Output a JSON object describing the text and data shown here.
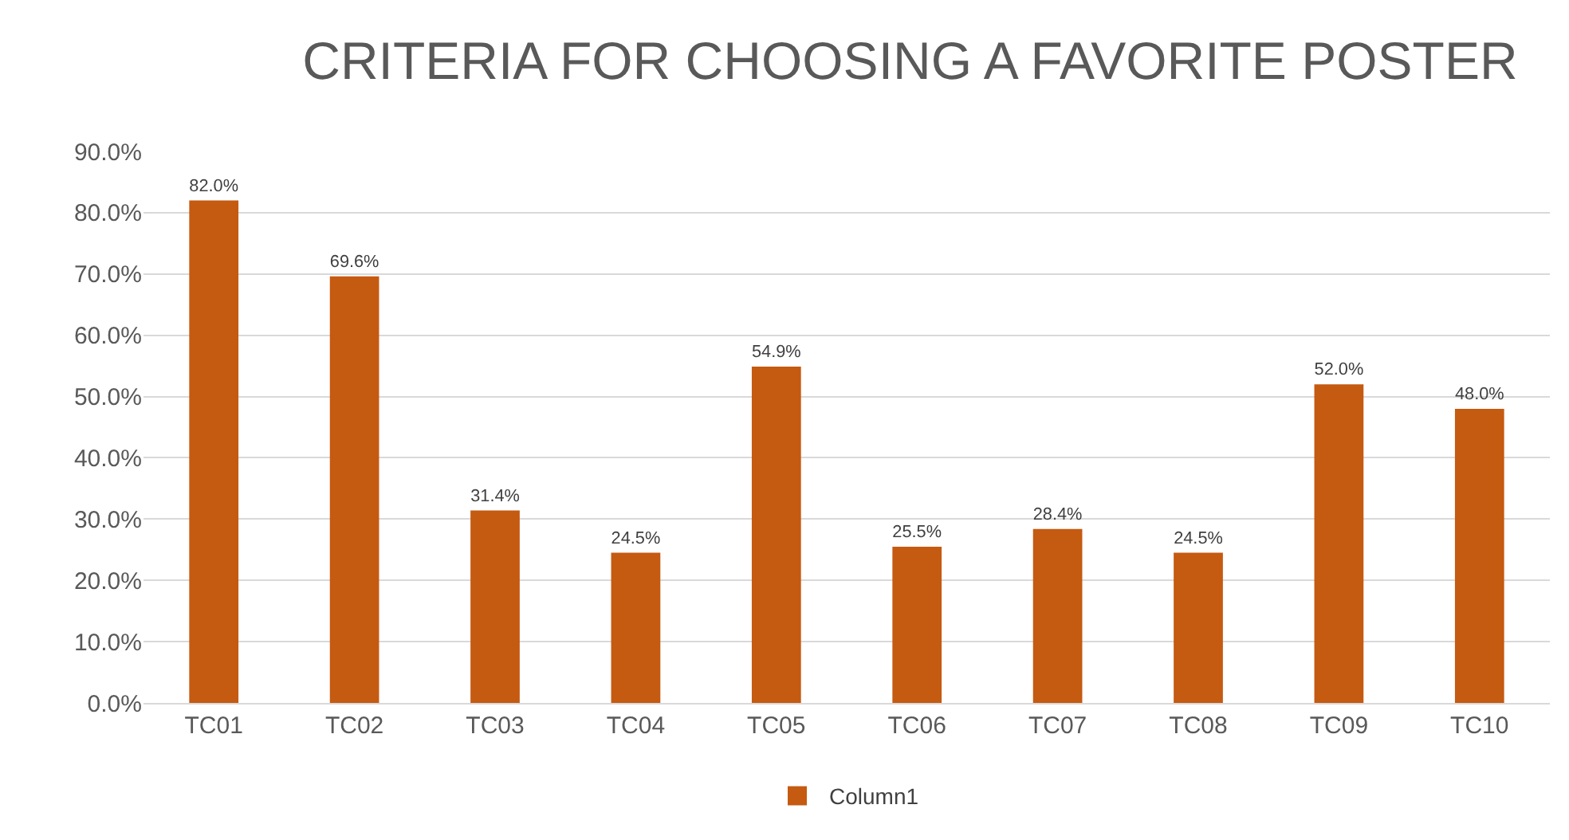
{
  "chart_data": {
    "type": "bar",
    "title": "CRITERIA FOR CHOOSING A FAVORITE POSTER",
    "categories": [
      "TC01",
      "TC02",
      "TC03",
      "TC04",
      "TC05",
      "TC06",
      "TC07",
      "TC08",
      "TC09",
      "TC10"
    ],
    "series": [
      {
        "name": "Column1",
        "color": "#c55a11",
        "values": [
          82.0,
          69.6,
          31.4,
          24.5,
          54.9,
          25.5,
          28.4,
          24.5,
          52.0,
          48.0
        ],
        "value_labels": [
          "82.0%",
          "69.6%",
          "31.4%",
          "24.5%",
          "54.9%",
          "25.5%",
          "28.4%",
          "24.5%",
          "52.0%",
          "48.0%"
        ]
      }
    ],
    "ylim": [
      0,
      90
    ],
    "yticks": [
      {
        "value": 0,
        "label": "0.0%"
      },
      {
        "value": 10,
        "label": "10.0%"
      },
      {
        "value": 20,
        "label": "20.0%"
      },
      {
        "value": 30,
        "label": "30.0%"
      },
      {
        "value": 40,
        "label": "40.0%"
      },
      {
        "value": 50,
        "label": "50.0%"
      },
      {
        "value": 60,
        "label": "60.0%"
      },
      {
        "value": 70,
        "label": "70.0%"
      },
      {
        "value": 80,
        "label": "80.0%"
      },
      {
        "value": 90,
        "label": "90.0%"
      }
    ],
    "grid": "y",
    "legend": "bottom"
  }
}
